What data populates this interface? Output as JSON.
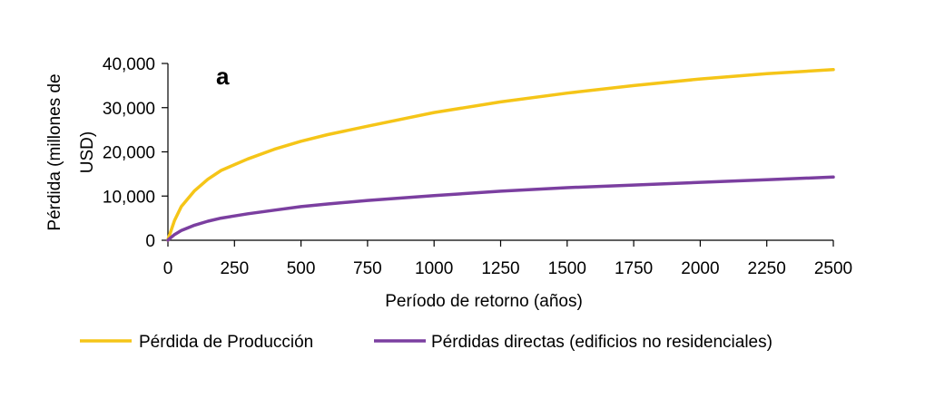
{
  "chart_data": {
    "type": "line",
    "panel_label": "a",
    "xlabel": "Período de retorno (años)",
    "ylabel_lines": [
      "Pérdida (millones  de",
      "USD)"
    ],
    "xlim": [
      0,
      2500
    ],
    "ylim": [
      0,
      40000
    ],
    "x_ticks": [
      0,
      250,
      500,
      750,
      1000,
      1250,
      1500,
      1750,
      2000,
      2250,
      2500
    ],
    "x_tick_labels": [
      "0",
      "250",
      "500",
      "750",
      "1000",
      "1250",
      "1500",
      "1750",
      "2000",
      "2250",
      "2500"
    ],
    "y_ticks": [
      0,
      10000,
      20000,
      30000,
      40000
    ],
    "y_tick_labels": [
      "0",
      "10,000",
      "20,000",
      "30,000",
      "40,000"
    ],
    "grid": false,
    "legend_position": "bottom",
    "x": [
      1,
      25,
      50,
      100,
      150,
      200,
      250,
      300,
      400,
      500,
      600,
      750,
      1000,
      1250,
      1500,
      1750,
      2000,
      2250,
      2500
    ],
    "series": [
      {
        "name": "Pérdida de Producción",
        "color": "#F5C518",
        "values": [
          300,
          4500,
          7600,
          11200,
          13800,
          15800,
          17100,
          18400,
          20600,
          22400,
          23900,
          25800,
          28900,
          31300,
          33300,
          35000,
          36500,
          37700,
          38600
        ]
      },
      {
        "name": "Pérdidas directas (edificios no residenciales)",
        "color": "#7B3FA0",
        "values": [
          100,
          1300,
          2200,
          3400,
          4300,
          5000,
          5500,
          6000,
          6800,
          7600,
          8200,
          9000,
          10100,
          11100,
          11900,
          12500,
          13100,
          13700,
          14300
        ]
      }
    ]
  }
}
